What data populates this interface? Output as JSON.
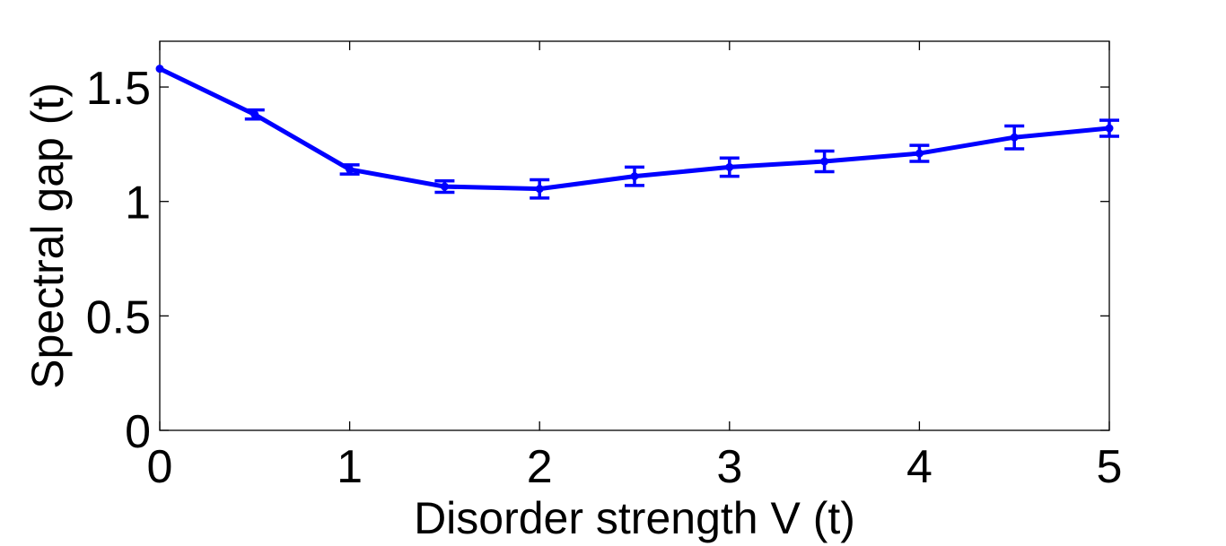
{
  "chart_data": {
    "type": "line",
    "title": "",
    "xlabel": "Disorder strength V (t)",
    "ylabel": "Spectral gap (t)",
    "xlim": [
      0,
      5
    ],
    "ylim": [
      0,
      1.7
    ],
    "xticks": [
      0,
      1,
      2,
      3,
      4,
      5
    ],
    "xtick_labels": [
      "0",
      "1",
      "2",
      "3",
      "4",
      "5"
    ],
    "yticks": [
      0,
      0.5,
      1,
      1.5
    ],
    "ytick_labels": [
      "0",
      "0.5",
      "1",
      "1.5"
    ],
    "grid": false,
    "color": "#0000ff",
    "series": [
      {
        "x": [
          0,
          0.5,
          1,
          1.5,
          2,
          2.5,
          3,
          3.5,
          4,
          4.5,
          5
        ],
        "y": [
          1.58,
          1.38,
          1.14,
          1.065,
          1.055,
          1.11,
          1.15,
          1.175,
          1.21,
          1.28,
          1.32
        ],
        "error": [
          0.0,
          0.02,
          0.02,
          0.025,
          0.04,
          0.04,
          0.04,
          0.045,
          0.035,
          0.05,
          0.035
        ]
      }
    ]
  }
}
